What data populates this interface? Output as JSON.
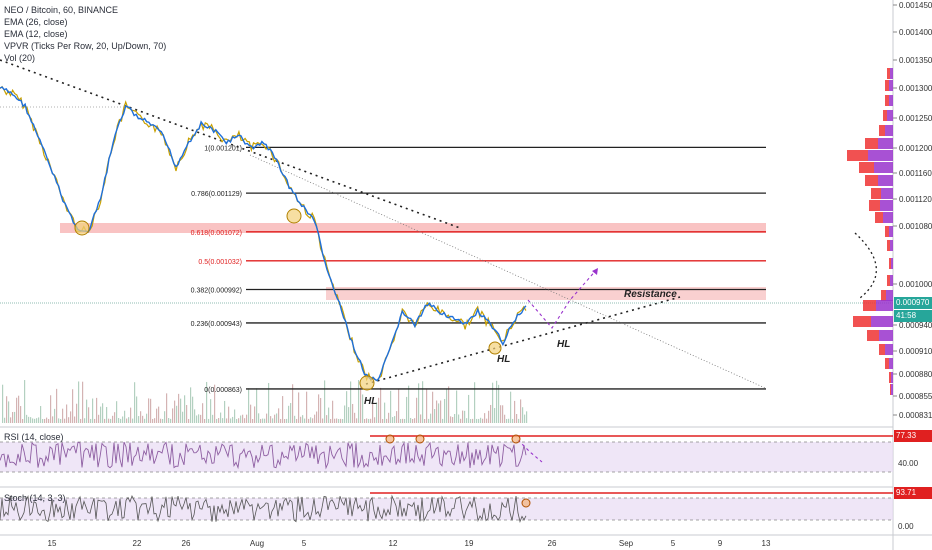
{
  "chart_data": {
    "type": "line",
    "title": "NEO / Bitcoin, 60, BINANCE",
    "indicators": [
      "EMA (26, close)",
      "EMA (12, close)",
      "VPVR (Ticks Per Row, 20, Up/Down, 70)",
      "Vol (20)"
    ],
    "x_tick_labels": [
      "15",
      "22",
      "26",
      "Aug",
      "5",
      "12",
      "19",
      "26",
      "Sep",
      "5",
      "9",
      "13"
    ],
    "y_tick_labels": [
      "0.001450",
      "0.001400",
      "0.001350",
      "0.001300",
      "0.001250",
      "0.001200",
      "0.001160",
      "0.001120",
      "0.001080",
      "0.001000",
      "0.000940",
      "0.000910",
      "0.000880",
      "0.000855",
      "0.000831"
    ],
    "ylim": [
      0.00082,
      0.00146
    ],
    "series": [
      {
        "values": [
          0.0013,
          0.00129,
          0.00127,
          0.00122,
          0.00117,
          0.00112,
          0.00108,
          0.00107,
          0.00112,
          0.00121,
          0.00127,
          0.00125,
          0.00124,
          0.00122,
          0.00117,
          0.00121,
          0.00124,
          0.00123,
          0.00121,
          0.00122,
          0.0012,
          0.00121,
          0.00118,
          0.00114,
          0.00111,
          0.00109,
          0.00102,
          0.00097,
          0.00092,
          0.00088,
          0.00087,
          0.00091,
          0.00096,
          0.00094,
          0.00097,
          0.00096,
          0.00095,
          0.00094,
          0.00096,
          0.00094,
          0.00092,
          0.00095,
          0.00097
        ]
      }
    ],
    "fib_levels": [
      {
        "ratio": "0(0.000863)",
        "value": 0.000863
      },
      {
        "ratio": "0.236(0.000943)",
        "value": 0.000943
      },
      {
        "ratio": "0.382(0.000992)",
        "value": 0.000992
      },
      {
        "ratio": "0.5(0.001032)",
        "value": 0.001032
      },
      {
        "ratio": "0.618(0.001072)",
        "value": 0.001072
      },
      {
        "ratio": "0.786(0.001129)",
        "value": 0.001129
      },
      {
        "ratio": "1(0.001201)",
        "value": 0.001201
      }
    ],
    "annotations": [
      "HL",
      "HL",
      "HL",
      "Resistance"
    ],
    "pivot_marks": [
      "1",
      "1",
      "1",
      "1",
      "1"
    ],
    "last_price": "0.000970",
    "countdown": "41:58",
    "rsi": {
      "label": "RSI (14, close)",
      "tick_labels": [
        "77.33",
        "40.00"
      ]
    },
    "stoch": {
      "label": "Stoch (14, 3, 3)",
      "tick_labels": [
        "93.71",
        "0.00"
      ]
    },
    "colors": {
      "ema26": "#1e6fd9",
      "ema12": "#c8a000",
      "resistance": "#f06060",
      "vpvr_up": "#9933cc",
      "vpvr_down": "#ee3333",
      "rsi": "#8e5ea2"
    }
  }
}
